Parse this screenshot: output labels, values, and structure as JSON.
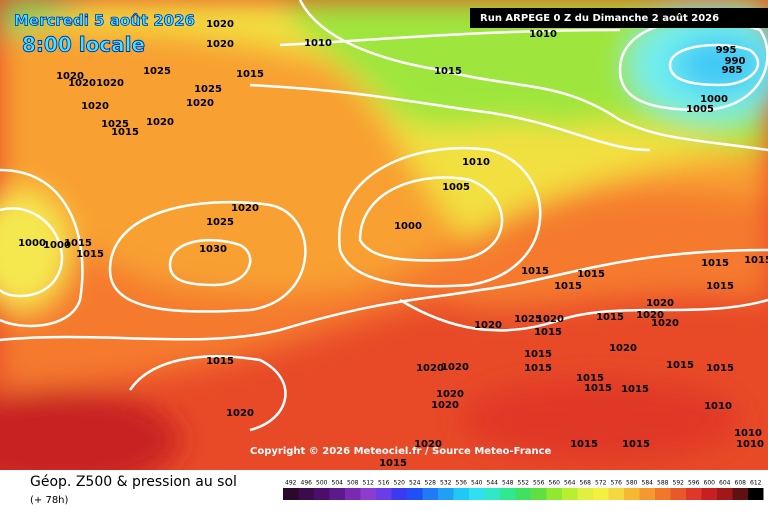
{
  "header": {
    "date": "Mercredi 5 août 2026",
    "time": "8:00 locale",
    "run": "Run ARPEGE 0 Z du Dimanche 2 août 2026"
  },
  "copyright": "Copyright © 2026 Meteociel.fr / Source Meteo-France",
  "footer": {
    "title": "Géop. Z500 & pression au sol",
    "lead": "(+ 78h)"
  },
  "colorbar": {
    "values": [
      492,
      496,
      500,
      504,
      508,
      512,
      516,
      520,
      524,
      528,
      532,
      536,
      540,
      544,
      548,
      552,
      556,
      560,
      564,
      568,
      572,
      576,
      580,
      584,
      588,
      592,
      596,
      600,
      604,
      608,
      612
    ],
    "colors": [
      "#2a0a2a",
      "#3b0b4b",
      "#4b0f6b",
      "#5e1a8c",
      "#7a2ab0",
      "#8e3bd0",
      "#6b3de8",
      "#3a3af0",
      "#1f4ff5",
      "#1f7af5",
      "#1fa0f5",
      "#20c8f5",
      "#2fe0f0",
      "#30e8c8",
      "#30e890",
      "#40e060",
      "#60e040",
      "#90e830",
      "#b8f030",
      "#e0f040",
      "#f5f040",
      "#f5d840",
      "#f5b830",
      "#f59830",
      "#f07828",
      "#e85828",
      "#e03828",
      "#c82020",
      "#a01818",
      "#601010",
      "#000000"
    ]
  },
  "isobar_labels": [
    "1020",
    "1020",
    "1010",
    "1010",
    "1020",
    "1020",
    "1020",
    "1025",
    "1015",
    "1025",
    "1020",
    "1020",
    "1025",
    "1015",
    "1020",
    "1015",
    "995",
    "990",
    "985",
    "1000",
    "1005",
    "1010",
    "1005",
    "1020",
    "1025",
    "1030",
    "1000",
    "1000",
    "1000",
    "1015",
    "1015",
    "1015",
    "1015",
    "1015",
    "1015",
    "1015",
    "1015",
    "1020",
    "1025",
    "1020",
    "1015",
    "1020",
    "1020",
    "1020",
    "1015",
    "1015",
    "1020",
    "1015",
    "1015",
    "1015",
    "1015",
    "1015",
    "1015",
    "1020",
    "1020",
    "1020",
    "1020",
    "1015",
    "1020",
    "1010",
    "1010",
    "1010",
    "1015",
    "1015",
    "1020",
    "1015"
  ]
}
